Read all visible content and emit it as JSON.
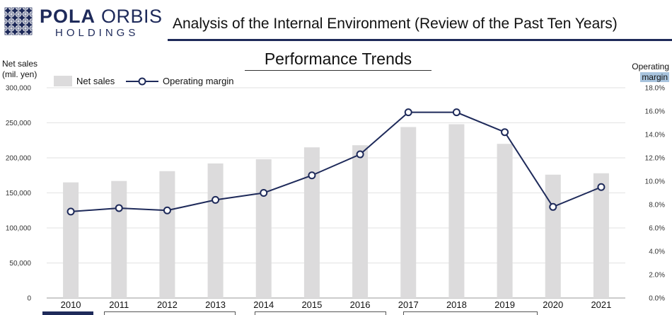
{
  "header": {
    "brand_bold": "POLA",
    "brand_light": " ORBIS",
    "brand_sub": "HOLDINGS",
    "page_title": "Analysis of the Internal Environment (Review of the Past Ten Years)"
  },
  "colors": {
    "navy": "#1e2a5a",
    "bar": "#dcdbdc",
    "highlight": "#a8c4de"
  },
  "chart_data": {
    "type": "bar",
    "title": "Performance Trends",
    "ylabel_left_line1": "Net sales",
    "ylabel_left_line2": "(mil. yen)",
    "ylabel_right_line1": "Operating",
    "ylabel_right_line2": "margin",
    "legend": [
      "Net sales",
      "Operating margin"
    ],
    "categories": [
      "2010",
      "2011",
      "2012",
      "2013",
      "2014",
      "2015",
      "2016",
      "2017",
      "2018",
      "2019",
      "2020",
      "2021"
    ],
    "series": [
      {
        "name": "Net sales",
        "type": "bar",
        "axis": "left",
        "values": [
          165000,
          167000,
          181000,
          192000,
          198000,
          215000,
          218000,
          244000,
          248000,
          220000,
          176000,
          178000
        ]
      },
      {
        "name": "Operating margin",
        "type": "line",
        "axis": "right",
        "values": [
          7.4,
          7.7,
          7.5,
          8.4,
          9.0,
          10.5,
          12.3,
          15.9,
          15.9,
          14.2,
          7.8,
          9.5
        ]
      }
    ],
    "ylim_left": [
      0,
      300000
    ],
    "yticks_left": [
      "0",
      "50,000",
      "100,000",
      "150,000",
      "200,000",
      "250,000",
      "300,000"
    ],
    "ylim_right": [
      0,
      18
    ],
    "yticks_right": [
      "0.0%",
      "2.0%",
      "4.0%",
      "6.0%",
      "8.0%",
      "10.0%",
      "12.0%",
      "14.0%",
      "16.0%",
      "18.0%"
    ],
    "grid": true
  }
}
